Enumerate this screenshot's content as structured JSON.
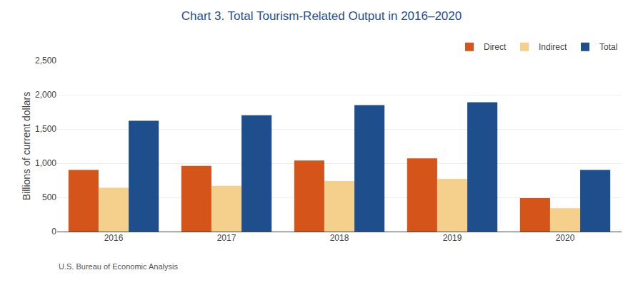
{
  "chart_data": {
    "type": "bar",
    "title": "Chart 3. Total Tourism-Related Output in 2016–2020",
    "ylabel": "Billions of current dollars",
    "annotations": [
      "U.S. Bureau of Economic Analysis"
    ],
    "categories": [
      "2016",
      "2017",
      "2018",
      "2019",
      "2020"
    ],
    "series": [
      {
        "name": "Direct",
        "color": "#d4541a",
        "values": [
          900,
          960,
          1040,
          1070,
          490
        ]
      },
      {
        "name": "Indirect",
        "color": "#f5d08c",
        "values": [
          640,
          670,
          740,
          770,
          340
        ]
      },
      {
        "name": "Total",
        "color": "#1f4e8c",
        "values": [
          1620,
          1700,
          1850,
          1890,
          900
        ]
      }
    ],
    "ylim": [
      0,
      2500
    ],
    "yticks": [
      0,
      500,
      {
        "value": 1000,
        "label": "1,000"
      },
      {
        "value": 1500,
        "label": "1,500"
      },
      {
        "value": 2000,
        "label": "2,000"
      },
      {
        "value": 2500,
        "label": "2,500"
      }
    ],
    "grid": true,
    "legend": "upper right",
    "title_color": "#1f4e8c"
  }
}
